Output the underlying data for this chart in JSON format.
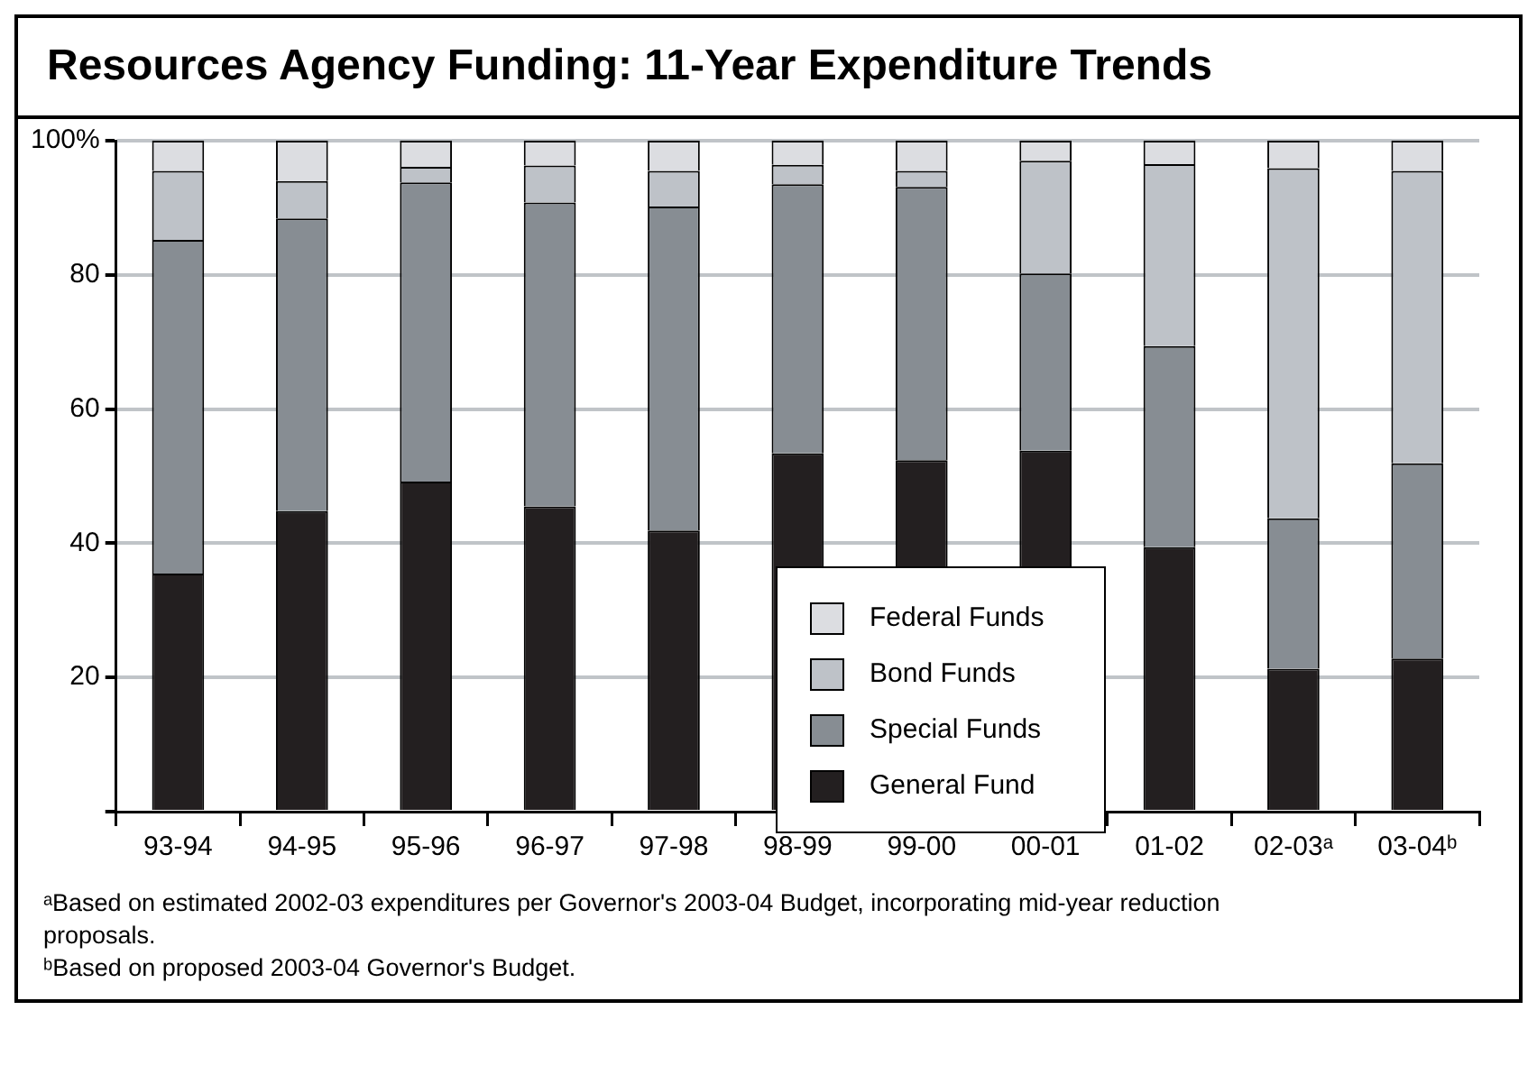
{
  "chart_data": {
    "type": "bar",
    "title": "Resources Agency Funding: 11-Year Expenditure Trends",
    "categories": [
      "93-94",
      "94-95",
      "95-96",
      "96-97",
      "97-98",
      "98-99",
      "99-00",
      "00-01",
      "01-02",
      "02-03ᵃ",
      "03-04ᵇ"
    ],
    "stacked": true,
    "series": [
      {
        "name": "General Fund",
        "color": "#231f20",
        "values": [
          35.5,
          44.8,
          49.2,
          45.5,
          41.9,
          53.4,
          52.4,
          53.8,
          39.4,
          21.3,
          22.8
        ]
      },
      {
        "name": "Special Funds",
        "color": "#878d93",
        "values": [
          49.7,
          43.6,
          44.6,
          45.3,
          48.3,
          40.1,
          40.7,
          26.4,
          30.0,
          22.4,
          29.1
        ]
      },
      {
        "name": "Bond Funds",
        "color": "#bec2c8",
        "values": [
          10.3,
          5.6,
          2.3,
          5.5,
          5.3,
          2.9,
          2.4,
          16.8,
          27.1,
          52.2,
          43.6
        ]
      },
      {
        "name": "Federal Funds",
        "color": "#dcdde1",
        "values": [
          4.5,
          6.0,
          3.9,
          3.7,
          4.5,
          3.6,
          4.5,
          3.0,
          3.5,
          4.1,
          4.5
        ]
      }
    ],
    "ylim": [
      0,
      100
    ],
    "yticks": [
      {
        "value": 0,
        "label": null
      },
      20,
      40,
      60,
      80,
      {
        "value": 100,
        "label": "100%"
      }
    ],
    "grid": "y",
    "legend": "bottom",
    "annotations": [
      "ᵃBased on estimated 2002-03 expenditures per Governor's 2003-04 Budget, incorporating mid-year reduction proposals.",
      "ᵇBased on proposed 2003-04 Governor's Budget."
    ]
  }
}
